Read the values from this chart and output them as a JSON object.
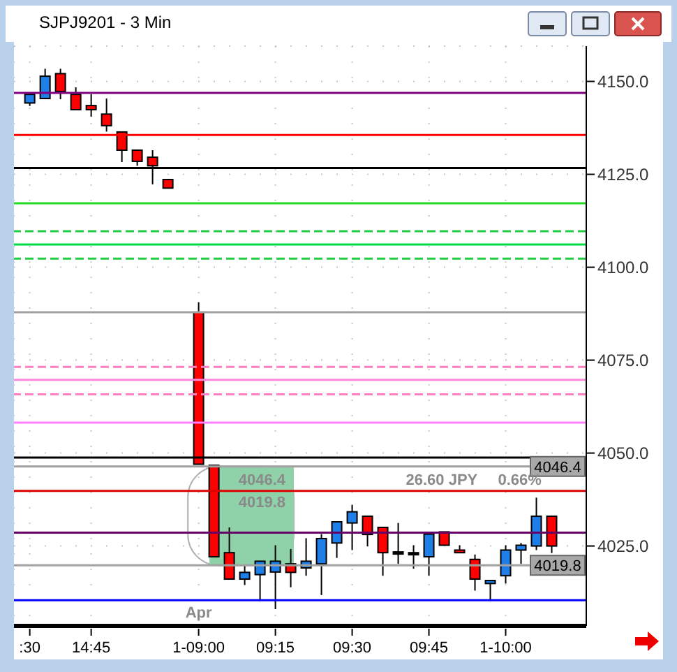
{
  "chart_data": {
    "type": "candlestick",
    "title": "SJPJ9201 - 3 Min",
    "categories": [
      ":30",
      null,
      null,
      null,
      "14:45",
      null,
      null,
      null,
      null,
      null,
      null,
      "1-09:00",
      null,
      null,
      null,
      null,
      "09:15",
      null,
      null,
      null,
      null,
      "09:30",
      null,
      null,
      null,
      null,
      "09:45",
      null,
      null,
      null,
      null,
      "1-10:00",
      null,
      null,
      null
    ],
    "ohlc": [
      [
        4144.2,
        4146.5,
        4143.4,
        4146.5
      ],
      [
        4145.4,
        4153.4,
        4145.4,
        4151.4
      ],
      [
        4152.1,
        4153.4,
        4145.2,
        4147.3
      ],
      [
        4146.5,
        4148.4,
        4142.4,
        4142.4
      ],
      [
        4143.5,
        4146.6,
        4140.5,
        4142.4
      ],
      [
        4141.2,
        4145.4,
        4136.5,
        4138.1
      ],
      [
        4136.4,
        4136.4,
        4128.3,
        4131.5
      ],
      [
        4131.5,
        4131.5,
        4127.3,
        4128.5
      ],
      [
        4129.6,
        4131.5,
        4122.3,
        4127.3
      ],
      [
        4123.6,
        4123.6,
        4121.3,
        4121.3
      ],
      null,
      [
        4087.9,
        4090.6,
        4047.0,
        4047.0
      ],
      [
        4046.7,
        4046.7,
        4022.1,
        4022.1
      ],
      [
        4023.2,
        4030.0,
        4016.1,
        4016.1
      ],
      [
        4016.1,
        4019.9,
        4014.5,
        4017.9
      ],
      [
        4017.3,
        4020.9,
        4010.2,
        4020.9
      ],
      [
        4018.0,
        4025.2,
        4008.0,
        4020.9
      ],
      [
        4020.2,
        4024.2,
        4013.9,
        4017.9
      ],
      [
        4019.1,
        4027.1,
        4017.0,
        4020.9
      ],
      [
        4020.2,
        4028.2,
        4011.8,
        4027.0
      ],
      [
        4025.8,
        4031.5,
        4021.8,
        4031.5
      ],
      [
        4031.2,
        4036.1,
        4023.9,
        4034.2
      ],
      [
        4033.0,
        4033.0,
        4024.9,
        4028.1
      ],
      [
        4030.0,
        4030.0,
        4017.0,
        4023.2
      ],
      [
        4023.4,
        4031.2,
        4020.2,
        4023.4
      ],
      [
        4023.2,
        4025.2,
        4018.9,
        4023.2
      ],
      [
        4022.1,
        4028.8,
        4017.0,
        4028.2
      ],
      [
        4028.8,
        4028.8,
        4025.2,
        4025.2
      ],
      [
        4023.9,
        4025.2,
        4023.2,
        4023.2
      ],
      [
        4021.4,
        4022.7,
        4013.0,
        4016.1
      ],
      [
        4014.9,
        4015.7,
        4010.2,
        4015.7
      ],
      [
        4017.0,
        4025.2,
        4014.9,
        4023.9
      ],
      [
        4023.9,
        4025.8,
        4020.2,
        4025.2
      ],
      [
        4025.0,
        4038.0,
        4023.9,
        4033.0
      ],
      [
        4033.0,
        4033.0,
        4023.1,
        4025.0
      ]
    ],
    "colors": [
      "#1f7fe8",
      "#1f7fe8",
      "#ff0000",
      "#ff0000",
      "#ff0000",
      "#ff0000",
      "#ff0000",
      "#ff0000",
      "#ff0000",
      "#ff0000",
      null,
      "#ff0000",
      "#ff0000",
      "#ff0000",
      "#1f7fe8",
      "#1f7fe8",
      "#1f7fe8",
      "#ff0000",
      "#1f7fe8",
      "#1f7fe8",
      "#1f7fe8",
      "#1f7fe8",
      "#ff0000",
      "#ff0000",
      "#000000",
      "#000000",
      "#1f7fe8",
      "#ff0000",
      "#ff0000",
      "#ff0000",
      "#1f7fe8",
      "#1f7fe8",
      "#1f7fe8",
      "#1f7fe8",
      "#ff0000"
    ],
    "ylim": [
      4003.5,
      4159.5
    ],
    "yticks": [
      {
        "value": 4025,
        "label": "4025.0"
      },
      {
        "value": 4050,
        "label": "4050.0"
      },
      {
        "value": 4075,
        "label": "4075.0"
      },
      {
        "value": 4100,
        "label": "4100.0"
      },
      {
        "value": 4125,
        "label": "4125.0"
      },
      {
        "value": 4150,
        "label": "4150.0"
      }
    ],
    "grid": true,
    "ref_lines": [
      {
        "axis": "y",
        "value": 4146.9,
        "color": "#800080"
      },
      {
        "axis": "y",
        "value": 4135.6,
        "color": "#ff0000"
      },
      {
        "axis": "y",
        "value": 4126.7,
        "color": "#000000"
      },
      {
        "axis": "y",
        "value": 4117.2,
        "color": "#22dd22"
      },
      {
        "axis": "y",
        "value": 4109.7,
        "color": "#22cc44",
        "line_style": "dashed"
      },
      {
        "axis": "y",
        "value": 4106.1,
        "color": "#00dd44"
      },
      {
        "axis": "y",
        "value": 4102.3,
        "color": "#22cc44",
        "line_style": "dashed"
      },
      {
        "axis": "y",
        "value": 4087.9,
        "color": "#a0a0a0"
      },
      {
        "axis": "y",
        "value": 4073.2,
        "color": "#ff80c0",
        "line_style": "dashed"
      },
      {
        "axis": "y",
        "value": 4069.7,
        "color": "#ff88dd"
      },
      {
        "axis": "y",
        "value": 4065.8,
        "color": "#ff80c0",
        "line_style": "dashed"
      },
      {
        "axis": "y",
        "value": 4058.2,
        "color": "#ff80ff"
      },
      {
        "axis": "y",
        "value": 4048.8,
        "color": "#000000"
      },
      {
        "axis": "y",
        "value": 4046.4,
        "label": "4046.4",
        "color": "#a0a0a0"
      },
      {
        "axis": "y",
        "value": 4039.8,
        "color": "#dd0000"
      },
      {
        "axis": "y",
        "value": 4028.6,
        "color": "#660066"
      },
      {
        "axis": "y",
        "value": 4019.8,
        "label": "4019.8",
        "color": "#a0a0a0"
      },
      {
        "axis": "y",
        "value": 4010.4,
        "color": "#0000ff"
      }
    ],
    "bands": [
      {
        "axis": "y",
        "from": 4019.8,
        "to": 4046.4,
        "color": "#8fd1a8"
      }
    ],
    "annotations": [
      "Apr",
      "4046.4",
      "4019.8",
      "26.60 JPY",
      "0.66%"
    ]
  }
}
